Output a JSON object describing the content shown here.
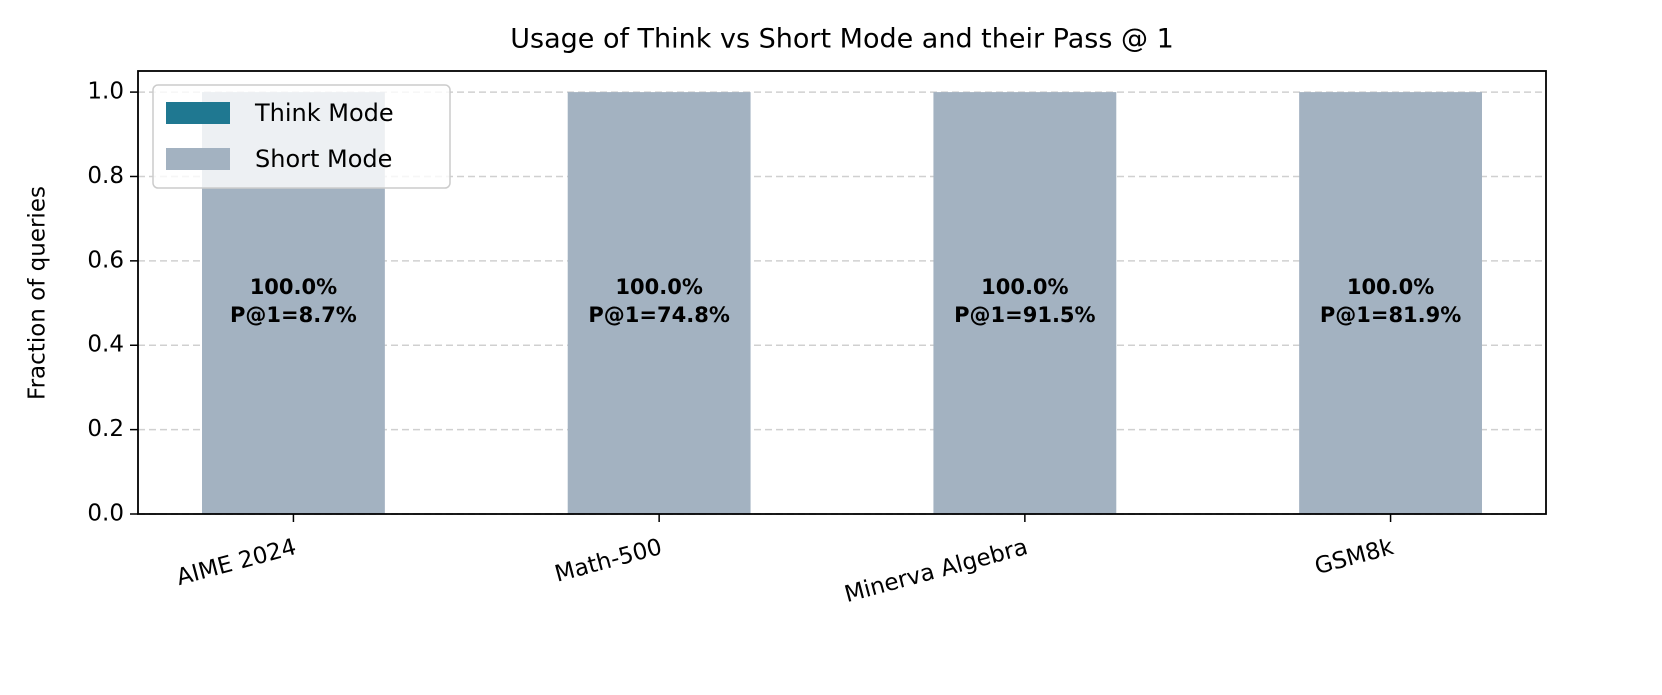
{
  "chart_data": {
    "type": "stacked_bar",
    "title": "Usage of Think vs Short Mode and their Pass @ 1",
    "y_label": "Fraction of queries",
    "categories": [
      "AIME 2024",
      "Math-500",
      "Minerva Algebra",
      "GSM8k"
    ],
    "series": [
      {
        "name": "Think Mode",
        "color": "#1f7891",
        "values": [
          0,
          0,
          0,
          0
        ]
      },
      {
        "name": "Short Mode",
        "color": "#a3b2c1",
        "values": [
          1.0,
          1.0,
          1.0,
          1.0
        ],
        "value_labels": [
          "100.0%",
          "100.0%",
          "100.0%",
          "100.0%"
        ]
      }
    ],
    "pass_at_1": {
      "values": [
        8.7,
        74.8,
        91.5,
        81.9
      ],
      "value_labels": [
        "P@1=8.7%",
        "P@1=74.8%",
        "P@1=91.5%",
        "P@1=81.9%"
      ]
    },
    "ylim": [
      0,
      1.05
    ],
    "yticks": [
      {
        "value": 0,
        "label": "0.0"
      },
      {
        "value": 0.2,
        "label": "0.2"
      },
      {
        "value": 0.4,
        "label": "0.4"
      },
      {
        "value": 0.6,
        "label": "0.6"
      },
      {
        "value": 0.8,
        "label": "0.8"
      },
      {
        "value": 1,
        "label": "1.0"
      }
    ],
    "grid": true,
    "legend": "upper left"
  }
}
